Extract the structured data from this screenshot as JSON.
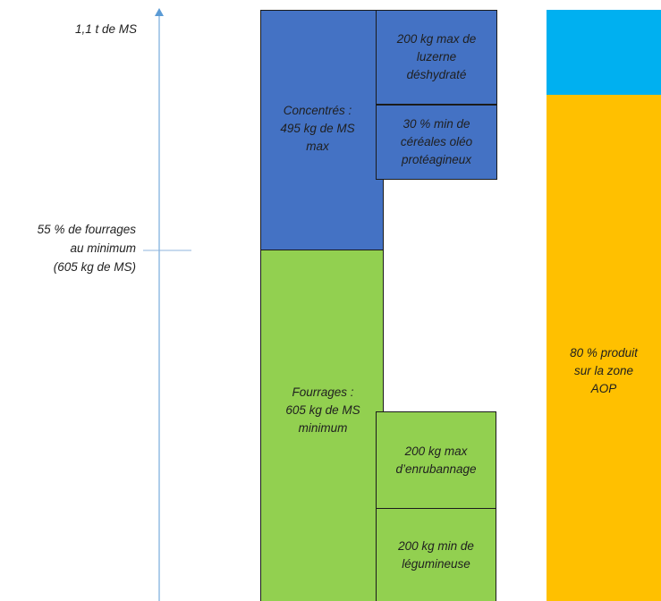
{
  "axis": {
    "top_label": "1,1 t de MS",
    "mid_label": [
      "55 % de fourrages",
      "au minimum",
      "(605 kg de MS)"
    ]
  },
  "left_column": {
    "concentrates": {
      "label": [
        "Concentrés :",
        "495 kg de MS",
        "max"
      ],
      "color": "#4472C4"
    },
    "luzerne": {
      "label": [
        "200 kg max de",
        "luzerne",
        "déshydraté"
      ],
      "color": "#4472C4"
    },
    "cereales": {
      "label": [
        "30 % min de",
        "céréales oléo",
        "protéagineux"
      ],
      "color": "#4472C4"
    },
    "fourrages": {
      "label": [
        "Fourrages :",
        "605 kg de MS",
        "minimum"
      ],
      "color": "#92D050"
    },
    "enrubannage": {
      "label": [
        "200 kg max",
        "d’enrubannage"
      ],
      "color": "#92D050"
    },
    "legumineuse": {
      "label": [
        "200 kg min de",
        "légumineuse"
      ],
      "color": "#92D050"
    }
  },
  "right_column": {
    "top_color": "#00B0F0",
    "zone": {
      "label": [
        "80 % produit",
        "sur la zone",
        "AOP"
      ],
      "color": "#FFC000"
    }
  }
}
